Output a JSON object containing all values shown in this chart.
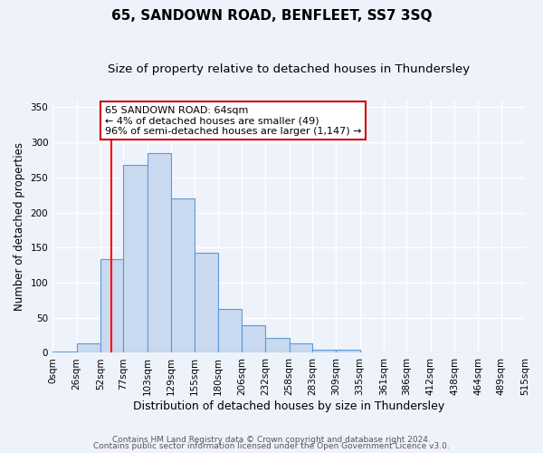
{
  "title": "65, SANDOWN ROAD, BENFLEET, SS7 3SQ",
  "subtitle": "Size of property relative to detached houses in Thundersley",
  "xlabel": "Distribution of detached houses by size in Thundersley",
  "ylabel": "Number of detached properties",
  "bar_edges": [
    0,
    26,
    52,
    77,
    103,
    129,
    155,
    180,
    206,
    232,
    258,
    283,
    309,
    335,
    361,
    386,
    412,
    438,
    464,
    489,
    515
  ],
  "bar_heights": [
    2,
    13,
    133,
    268,
    285,
    220,
    142,
    63,
    39,
    21,
    13,
    5,
    4,
    1,
    1,
    1,
    0,
    0,
    0,
    1
  ],
  "bar_color": "#c9d9f0",
  "bar_edge_color": "#5b9bd5",
  "ylim": [
    0,
    360
  ],
  "yticks": [
    0,
    50,
    100,
    150,
    200,
    250,
    300,
    350
  ],
  "red_line_x": 64,
  "annotation_title": "65 SANDOWN ROAD: 64sqm",
  "annotation_line1": "← 4% of detached houses are smaller (49)",
  "annotation_line2": "96% of semi-detached houses are larger (1,147) →",
  "annotation_box_color": "#ffffff",
  "annotation_box_edge_color": "#cc0000",
  "tick_labels": [
    "0sqm",
    "26sqm",
    "52sqm",
    "77sqm",
    "103sqm",
    "129sqm",
    "155sqm",
    "180sqm",
    "206sqm",
    "232sqm",
    "258sqm",
    "283sqm",
    "309sqm",
    "335sqm",
    "361sqm",
    "386sqm",
    "412sqm",
    "438sqm",
    "464sqm",
    "489sqm",
    "515sqm"
  ],
  "footer1": "Contains HM Land Registry data © Crown copyright and database right 2024.",
  "footer2": "Contains public sector information licensed under the Open Government Licence v3.0.",
  "bg_color": "#eef2fb",
  "grid_color": "#ffffff",
  "title_fontsize": 11,
  "subtitle_fontsize": 9.5,
  "xlabel_fontsize": 9,
  "ylabel_fontsize": 8.5,
  "tick_fontsize": 7.5,
  "ann_fontsize": 8,
  "footer_fontsize": 6.5
}
